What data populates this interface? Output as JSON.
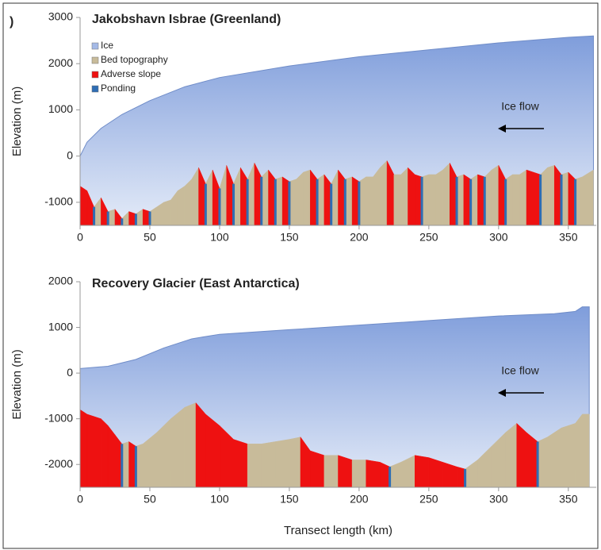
{
  "chart_data": [
    {
      "type": "area",
      "panel_label": ")",
      "title": "Jakobshavn Isbrae (Greenland)",
      "ylabel": "Elevation (m)",
      "annotation": "Ice flow",
      "xlim": [
        0,
        370
      ],
      "xticks": [
        0,
        50,
        100,
        150,
        200,
        250,
        300,
        350
      ],
      "ylim": [
        -1500,
        3000
      ],
      "yticks": [
        -1000,
        0,
        1000,
        2000,
        3000
      ],
      "legend": "upper left",
      "highlights": [
        {
          "name": "Adverse slope",
          "color": "#ee1111"
        },
        {
          "name": "Ponding",
          "color": "#2e6db4"
        }
      ],
      "series": [
        {
          "name": "Ice",
          "color": "#a4b9e6",
          "x": [
            0,
            5,
            15,
            30,
            50,
            75,
            100,
            150,
            200,
            250,
            300,
            350,
            368
          ],
          "values": [
            0,
            300,
            600,
            900,
            1200,
            1500,
            1700,
            1950,
            2150,
            2300,
            2450,
            2570,
            2600
          ]
        },
        {
          "name": "Bed topography",
          "color": "#c8bb9a",
          "x": [
            0,
            5,
            10,
            15,
            20,
            25,
            30,
            35,
            40,
            45,
            50,
            55,
            60,
            65,
            70,
            75,
            80,
            85,
            90,
            95,
            100,
            105,
            110,
            115,
            120,
            125,
            130,
            135,
            140,
            145,
            150,
            155,
            160,
            165,
            170,
            175,
            180,
            185,
            190,
            195,
            200,
            205,
            210,
            215,
            220,
            225,
            230,
            235,
            240,
            245,
            250,
            255,
            260,
            265,
            270,
            275,
            280,
            285,
            290,
            295,
            300,
            305,
            310,
            315,
            320,
            325,
            330,
            335,
            340,
            345,
            350,
            355,
            360,
            368
          ],
          "values": [
            -650,
            -750,
            -1100,
            -900,
            -1200,
            -1150,
            -1350,
            -1200,
            -1250,
            -1150,
            -1200,
            -1100,
            -1000,
            -950,
            -750,
            -650,
            -500,
            -250,
            -600,
            -300,
            -700,
            -200,
            -600,
            -250,
            -500,
            -150,
            -450,
            -300,
            -500,
            -450,
            -550,
            -500,
            -350,
            -300,
            -500,
            -400,
            -600,
            -300,
            -500,
            -450,
            -550,
            -450,
            -450,
            -250,
            -100,
            -400,
            -400,
            -250,
            -400,
            -450,
            -400,
            -400,
            -300,
            -150,
            -450,
            -400,
            -500,
            -400,
            -450,
            -300,
            -200,
            -500,
            -400,
            -400,
            -300,
            -350,
            -400,
            -250,
            -200,
            -400,
            -350,
            -500,
            -450,
            -300
          ]
        }
      ]
    },
    {
      "type": "area",
      "title": "Recovery Glacier (East Antarctica)",
      "ylabel": "Elevation (m)",
      "xlabel": "Transect length (km)",
      "annotation": "Ice flow",
      "xlim": [
        0,
        370
      ],
      "xticks": [
        0,
        50,
        100,
        150,
        200,
        250,
        300,
        350
      ],
      "ylim": [
        -2500,
        2000
      ],
      "yticks": [
        -2000,
        -1000,
        0,
        1000,
        2000
      ],
      "highlights": [
        {
          "name": "Adverse slope",
          "color": "#ee1111"
        },
        {
          "name": "Ponding",
          "color": "#2e6db4"
        }
      ],
      "series": [
        {
          "name": "Ice",
          "color": "#a4b9e6",
          "x": [
            0,
            20,
            40,
            60,
            80,
            100,
            150,
            200,
            250,
            300,
            340,
            355,
            360,
            365
          ],
          "values": [
            100,
            150,
            300,
            550,
            750,
            850,
            950,
            1050,
            1150,
            1250,
            1300,
            1350,
            1450,
            1450
          ]
        },
        {
          "name": "Bed topography",
          "color": "#c8bb9a",
          "x": [
            0,
            5,
            10,
            15,
            20,
            25,
            30,
            35,
            40,
            45,
            55,
            65,
            75,
            83,
            90,
            100,
            110,
            120,
            130,
            140,
            150,
            158,
            165,
            175,
            185,
            195,
            205,
            215,
            222,
            230,
            240,
            250,
            260,
            270,
            276,
            285,
            295,
            305,
            313,
            320,
            328,
            335,
            345,
            355,
            360,
            365
          ],
          "values": [
            -800,
            -900,
            -950,
            -1000,
            -1150,
            -1350,
            -1550,
            -1500,
            -1600,
            -1550,
            -1300,
            -1000,
            -750,
            -650,
            -900,
            -1150,
            -1450,
            -1550,
            -1550,
            -1500,
            -1450,
            -1400,
            -1700,
            -1800,
            -1800,
            -1900,
            -1900,
            -1950,
            -2050,
            -1950,
            -1800,
            -1850,
            -1950,
            -2050,
            -2100,
            -1900,
            -1600,
            -1300,
            -1100,
            -1300,
            -1500,
            -1400,
            -1200,
            -1100,
            -900,
            -900
          ]
        }
      ]
    }
  ]
}
